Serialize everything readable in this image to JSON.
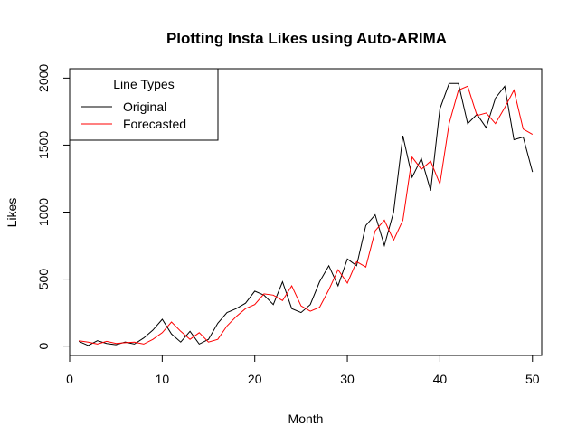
{
  "chart_data": {
    "type": "line",
    "title": "Plotting Insta Likes using Auto-ARIMA",
    "xlabel": "Month",
    "ylabel": "Likes",
    "xlim": [
      0,
      51
    ],
    "ylim": [
      -70,
      2070
    ],
    "xticks": [
      0,
      10,
      20,
      30,
      40,
      50
    ],
    "yticks": [
      0,
      500,
      1000,
      1500,
      2000
    ],
    "grid": false,
    "legend": {
      "title": "Line Types",
      "position": "top-left"
    },
    "x": [
      1,
      2,
      3,
      4,
      5,
      6,
      7,
      8,
      9,
      10,
      11,
      12,
      13,
      14,
      15,
      16,
      17,
      18,
      19,
      20,
      21,
      22,
      23,
      24,
      25,
      26,
      27,
      28,
      29,
      30,
      31,
      32,
      33,
      34,
      35,
      36,
      37,
      38,
      39,
      40,
      41,
      42,
      43,
      44,
      45,
      46,
      47,
      48,
      49,
      50
    ],
    "series": [
      {
        "name": "Original",
        "color": "#000000",
        "values": [
          35,
          5,
          40,
          20,
          10,
          30,
          15,
          60,
          120,
          200,
          90,
          30,
          110,
          15,
          50,
          170,
          250,
          280,
          320,
          410,
          380,
          310,
          480,
          280,
          250,
          310,
          480,
          600,
          450,
          650,
          600,
          900,
          980,
          750,
          1000,
          1570,
          1260,
          1400,
          1160,
          1770,
          1960,
          1960,
          1660,
          1730,
          1630,
          1850,
          1940,
          1540,
          1560,
          1300
        ]
      },
      {
        "name": "Forecasted",
        "color": "#ff0000",
        "values": [
          40,
          30,
          15,
          35,
          20,
          25,
          30,
          15,
          50,
          100,
          180,
          110,
          50,
          100,
          30,
          50,
          150,
          220,
          280,
          310,
          390,
          380,
          340,
          450,
          300,
          260,
          290,
          420,
          570,
          470,
          630,
          590,
          860,
          940,
          790,
          940,
          1410,
          1320,
          1380,
          1210,
          1660,
          1910,
          1940,
          1720,
          1740,
          1660,
          1780,
          1910,
          1620,
          1580
        ]
      }
    ]
  }
}
